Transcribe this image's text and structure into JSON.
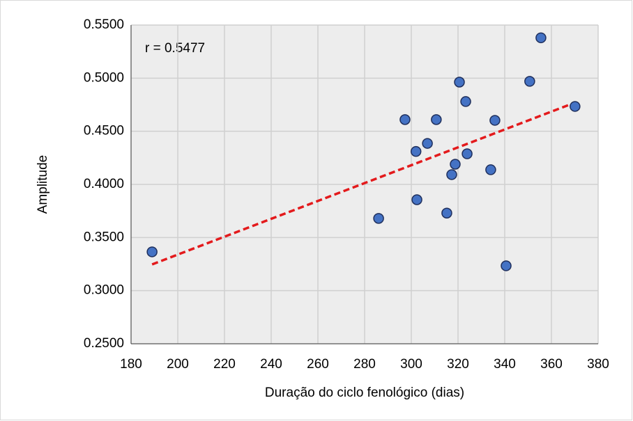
{
  "chart_data": {
    "type": "scatter",
    "x_label": "Duração do ciclo fenológico (dias)",
    "y_label": "Amplitude",
    "annotation": "r = 0.5477",
    "series": [
      {
        "color": "#4472c4",
        "x": [
          189,
          286,
          297.3,
          302,
          302.4,
          306.9,
          310.7,
          315.2,
          317.3,
          318.8,
          320.6,
          323.3,
          323.9,
          334,
          335.8,
          340.6,
          350.7,
          355.5,
          370.1
        ],
        "values": [
          0.3365,
          0.368,
          0.461,
          0.431,
          0.3856,
          0.4386,
          0.461,
          0.373,
          0.4092,
          0.419,
          0.4963,
          0.478,
          0.4288,
          0.4138,
          0.4603,
          0.3234,
          0.497,
          0.538,
          0.4734
        ]
      }
    ],
    "trendline": {
      "color": "#e31a1c",
      "x": [
        189,
        369.6
      ],
      "y": [
        0.3247,
        0.4766
      ]
    },
    "xlim": [
      180,
      380
    ],
    "xticks": [
      180,
      200,
      220,
      240,
      260,
      280,
      300,
      320,
      340,
      360,
      380
    ],
    "ylim": [
      0.25,
      0.55
    ],
    "yticks": [
      {
        "value": 0.25,
        "label": "0.2500"
      },
      {
        "value": 0.3,
        "label": "0.3000"
      },
      {
        "value": 0.35,
        "label": "0.3500"
      },
      {
        "value": 0.4,
        "label": "0.4000"
      },
      {
        "value": 0.45,
        "label": "0.4500"
      },
      {
        "value": 0.5,
        "label": "0.5000"
      },
      {
        "value": 0.55,
        "label": "0.5500"
      }
    ],
    "grid": true
  }
}
